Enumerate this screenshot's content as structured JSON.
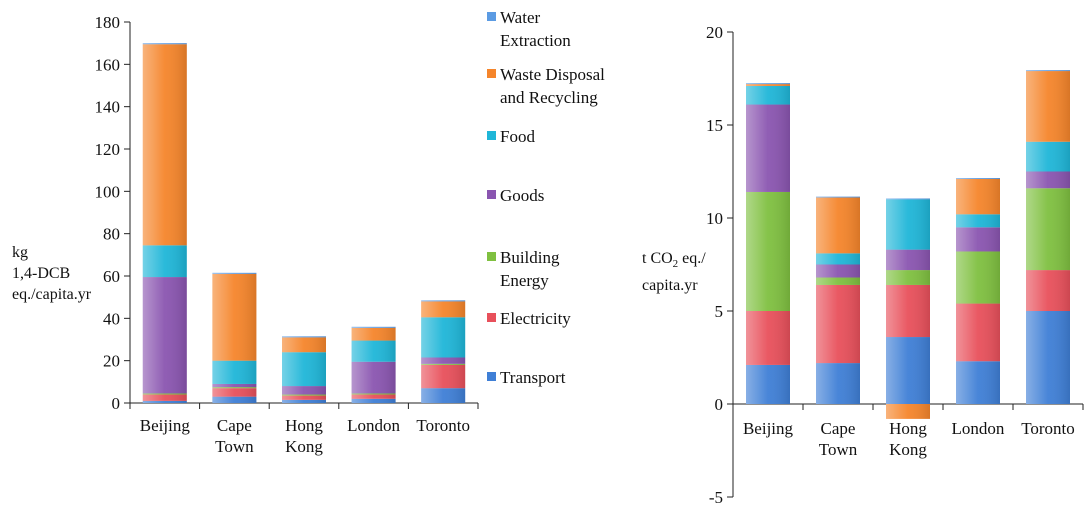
{
  "series_colors": {
    "Transport": "#3f7fd6",
    "Electricity": "#e8505b",
    "Building Energy": "#7fc040",
    "Goods": "#8a55b0",
    "Food": "#1fb6d8",
    "Waste Disposal and Recycling": "#f5852b",
    "Water Extraction": "#5b9be3"
  },
  "legend": {
    "items": [
      {
        "label": "Water\nExtraction",
        "series": "Water Extraction"
      },
      {
        "label": "Waste Disposal\nand Recycling",
        "series": "Waste Disposal and Recycling"
      },
      {
        "label": "Food",
        "series": "Food"
      },
      {
        "label": "Goods",
        "series": "Goods"
      },
      {
        "label": "Building\nEnergy",
        "series": "Building Energy"
      },
      {
        "label": "Electricity",
        "series": "Electricity"
      },
      {
        "label": "Transport",
        "series": "Transport"
      }
    ]
  },
  "chart_data": [
    {
      "type": "bar",
      "stacked": true,
      "ylabel": "kg\n1,4-DCB\neq./capita.yr",
      "ylim": [
        0,
        180
      ],
      "yticks": [
        0,
        20,
        40,
        60,
        80,
        100,
        120,
        140,
        160,
        180
      ],
      "categories": [
        "Beijing",
        "Cape\nTown",
        "Hong\nKong",
        "London",
        "Toronto"
      ],
      "series": [
        {
          "name": "Transport",
          "values": [
            1,
            3,
            1.5,
            2,
            7
          ]
        },
        {
          "name": "Electricity",
          "values": [
            3,
            4,
            2,
            2,
            11
          ]
        },
        {
          "name": "Building Energy",
          "values": [
            0.5,
            0.5,
            0.5,
            0.5,
            0.5
          ]
        },
        {
          "name": "Goods",
          "values": [
            55,
            1.5,
            4,
            15,
            3
          ]
        },
        {
          "name": "Food",
          "values": [
            15,
            11,
            16,
            10,
            19
          ]
        },
        {
          "name": "Waste Disposal and Recycling",
          "values": [
            95,
            41,
            7,
            6,
            7.5
          ]
        },
        {
          "name": "Water Extraction",
          "values": [
            0.5,
            0.5,
            0.5,
            0.5,
            0.5
          ]
        }
      ]
    },
    {
      "type": "bar",
      "stacked": true,
      "ylabel": "t CO₂ eq./\ncapita.yr",
      "ylim": [
        -5,
        20
      ],
      "yticks": [
        -5,
        0,
        5,
        10,
        15,
        20
      ],
      "categories": [
        "Beijing",
        "Cape\nTown",
        "Hong\nKong",
        "London",
        "Toronto"
      ],
      "series": [
        {
          "name": "Transport",
          "values": [
            2.1,
            2.2,
            3.6,
            2.3,
            5
          ]
        },
        {
          "name": "Electricity",
          "values": [
            2.9,
            4.2,
            2.8,
            3.1,
            2.2
          ]
        },
        {
          "name": "Building Energy",
          "values": [
            6.4,
            0.4,
            0.8,
            2.8,
            4.4
          ]
        },
        {
          "name": "Goods",
          "values": [
            4.7,
            0.7,
            1.1,
            1.3,
            0.9
          ]
        },
        {
          "name": "Food",
          "values": [
            1,
            0.6,
            2.7,
            0.7,
            1.6
          ]
        },
        {
          "name": "Waste Disposal and Recycling",
          "values": [
            0.1,
            3,
            -0.8,
            1.9,
            3.8
          ]
        },
        {
          "name": "Water Extraction",
          "values": [
            0.05,
            0.05,
            0.05,
            0.05,
            0.05
          ]
        }
      ]
    }
  ]
}
